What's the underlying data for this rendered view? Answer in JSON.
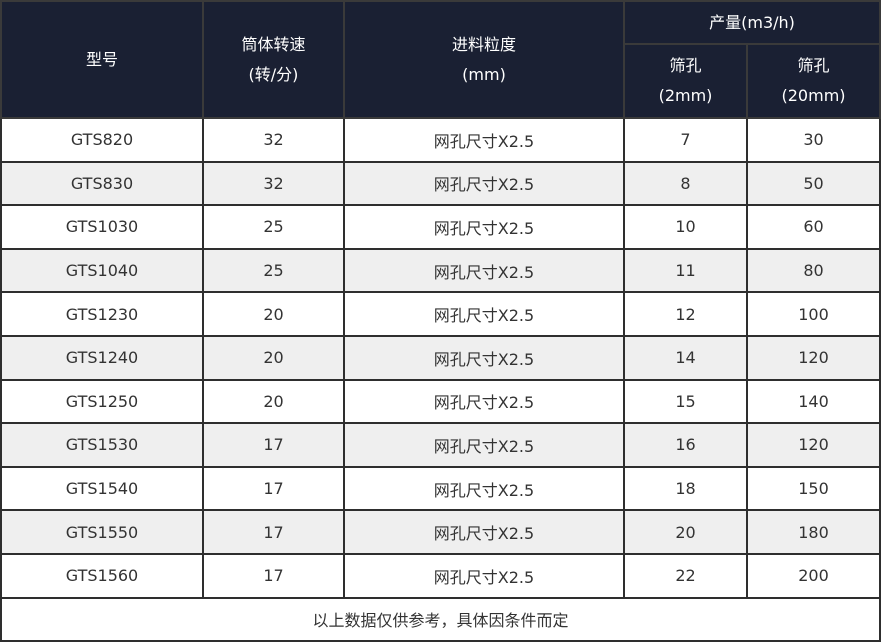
{
  "header": {
    "model": "型号",
    "speed": [
      "筒体转速",
      "(转/分)"
    ],
    "feed": [
      "进料粒度",
      "(mm)"
    ],
    "capacity": "产量(m3/h)",
    "sieve_2": [
      "筛孔",
      "(2mm)"
    ],
    "sieve_20": [
      "筛孔",
      "(20mm)"
    ]
  },
  "rows": [
    [
      "GTS820",
      "32",
      "网孔尺寸X2.5",
      "7",
      "30"
    ],
    [
      "GTS830",
      "32",
      "网孔尺寸X2.5",
      "8",
      "50"
    ],
    [
      "GTS1030",
      "25",
      "网孔尺寸X2.5",
      "10",
      "60"
    ],
    [
      "GTS1040",
      "25",
      "网孔尺寸X2.5",
      "11",
      "80"
    ],
    [
      "GTS1230",
      "20",
      "网孔尺寸X2.5",
      "12",
      "100"
    ],
    [
      "GTS1240",
      "20",
      "网孔尺寸X2.5",
      "14",
      "120"
    ],
    [
      "GTS1250",
      "20",
      "网孔尺寸X2.5",
      "15",
      "140"
    ],
    [
      "GTS1530",
      "17",
      "网孔尺寸X2.5",
      "16",
      "120"
    ],
    [
      "GTS1540",
      "17",
      "网孔尺寸X2.5",
      "18",
      "150"
    ],
    [
      "GTS1550",
      "17",
      "网孔尺寸X2.5",
      "20",
      "180"
    ],
    [
      "GTS1560",
      "17",
      "网孔尺寸X2.5",
      "22",
      "200"
    ]
  ],
  "footer": "以上数据仅供参考，具体因条件而定",
  "colors": {
    "header_bg": "#1a2033",
    "stripe": "#efefef",
    "border": "#2e2e2e"
  }
}
